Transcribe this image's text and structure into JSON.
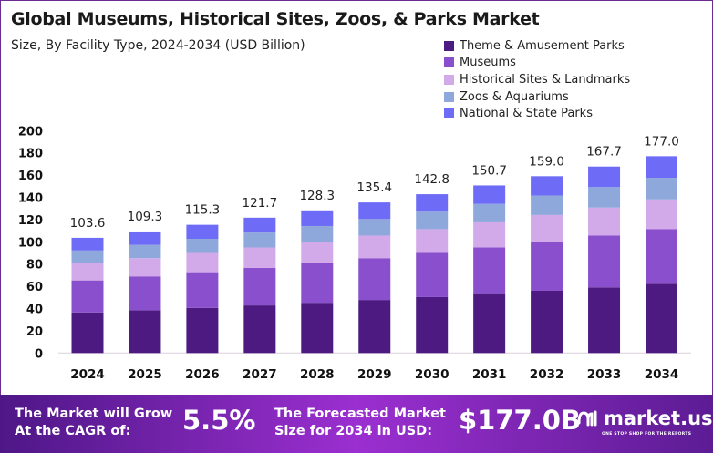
{
  "chart_data": {
    "type": "bar",
    "stacked": true,
    "title": "Global Museums, Historical Sites, Zoos, & Parks Market",
    "subtitle": "Size, By Facility Type, 2024-2034 (USD Billion)",
    "categories": [
      "2024",
      "2025",
      "2026",
      "2027",
      "2028",
      "2029",
      "2030",
      "2031",
      "2032",
      "2033",
      "2034"
    ],
    "totals": [
      "103.6",
      "109.3",
      "115.3",
      "121.7",
      "128.3",
      "135.4",
      "142.8",
      "150.7",
      "159.0",
      "167.7",
      "177.0"
    ],
    "series": [
      {
        "name": "Theme & Amusement Parks",
        "color": "#4c1a80",
        "values": [
          36.5,
          38.5,
          40.6,
          42.8,
          45.2,
          47.7,
          50.3,
          53.0,
          56.0,
          59.0,
          62.3
        ]
      },
      {
        "name": "Museums",
        "color": "#8a4fcc",
        "values": [
          28.8,
          30.4,
          32.1,
          33.8,
          35.7,
          37.6,
          39.7,
          41.9,
          44.2,
          46.6,
          49.2
        ]
      },
      {
        "name": "Historical Sites & Landmarks",
        "color": "#d2a9e9",
        "values": [
          15.5,
          16.4,
          17.3,
          18.3,
          19.2,
          20.3,
          21.4,
          22.6,
          23.9,
          25.2,
          26.6
        ]
      },
      {
        "name": "Zoos & Aquariums",
        "color": "#8fa8dc",
        "values": [
          11.4,
          12.0,
          12.7,
          13.4,
          14.1,
          14.9,
          15.7,
          16.6,
          17.5,
          18.4,
          19.5
        ]
      },
      {
        "name": "National & State Parks",
        "color": "#6e6cf6",
        "values": [
          11.4,
          12.0,
          12.6,
          13.4,
          14.1,
          14.9,
          15.7,
          16.6,
          17.4,
          18.5,
          19.4
        ]
      }
    ],
    "yticks": [
      "0",
      "20",
      "40",
      "60",
      "80",
      "100",
      "120",
      "140",
      "160",
      "180",
      "200"
    ],
    "ylim": [
      0,
      200
    ],
    "legend_position": "top-right",
    "grid": false
  },
  "footer": {
    "cagr_label_1": "The Market will Grow",
    "cagr_label_2": "At the CAGR of:",
    "cagr_value": "5.5%",
    "forecast_label_1": "The Forecasted Market",
    "forecast_label_2": "Size for 2034 in USD:",
    "forecast_value": "$177.0B",
    "brand": "market.us",
    "brand_tagline": "ONE STOP SHOP FOR THE REPORTS"
  }
}
